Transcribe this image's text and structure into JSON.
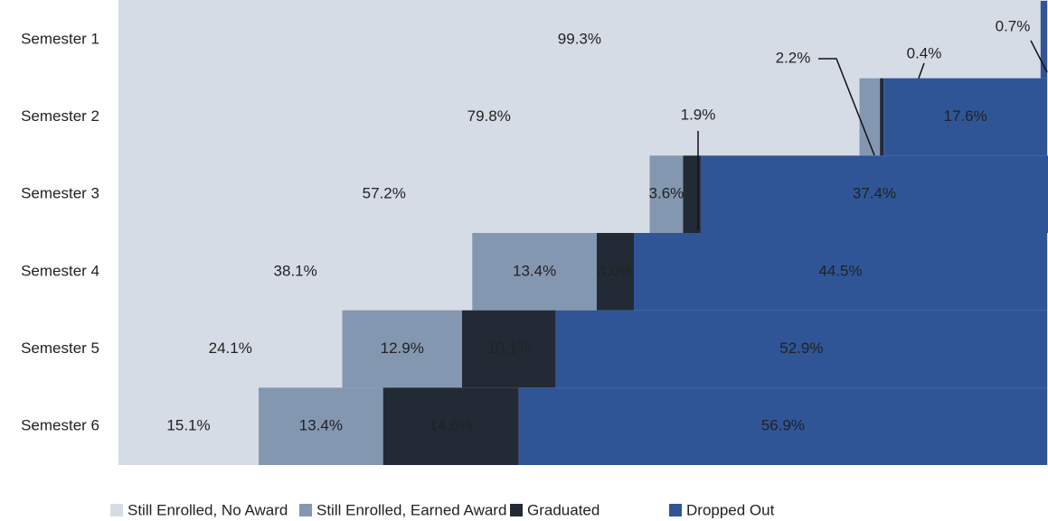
{
  "chart_data": {
    "type": "stacked-bar-horizontal",
    "categories": [
      "Semester 1",
      "Semester 2",
      "Semester 3",
      "Semester 4",
      "Semester 5",
      "Semester 6"
    ],
    "series": [
      {
        "name": "Still Enrolled, No Award",
        "color": "#d6dce5",
        "values": [
          99.3,
          79.8,
          57.2,
          38.1,
          24.1,
          15.1
        ],
        "value_labels": [
          "99.3%",
          "79.8%",
          "57.2%",
          "38.1%",
          "24.1%",
          "15.1%"
        ]
      },
      {
        "name": "Still Enrolled, Earned Award",
        "color": "#8497b0",
        "values": [
          0,
          2.2,
          3.6,
          13.4,
          12.9,
          13.4
        ],
        "value_labels": [
          null,
          "2.2%",
          "3.6%",
          "13.4%",
          "12.9%",
          "13.4%"
        ]
      },
      {
        "name": "Graduated",
        "color": "#222a35",
        "values": [
          0,
          0.4,
          1.9,
          4.0,
          10.1,
          14.6
        ],
        "value_labels": [
          null,
          "0.4%",
          "1.9%",
          "4.0%",
          "10.1%",
          "14.6%"
        ]
      },
      {
        "name": "Dropped Out",
        "color": "#2f5597",
        "values": [
          0.7,
          17.6,
          37.4,
          44.5,
          52.9,
          56.9
        ],
        "value_labels": [
          "0.7%",
          "17.6%",
          "37.4%",
          "44.5%",
          "52.9%",
          "56.9%"
        ]
      }
    ],
    "xlim": [
      0,
      100
    ],
    "legend": "bottom"
  }
}
